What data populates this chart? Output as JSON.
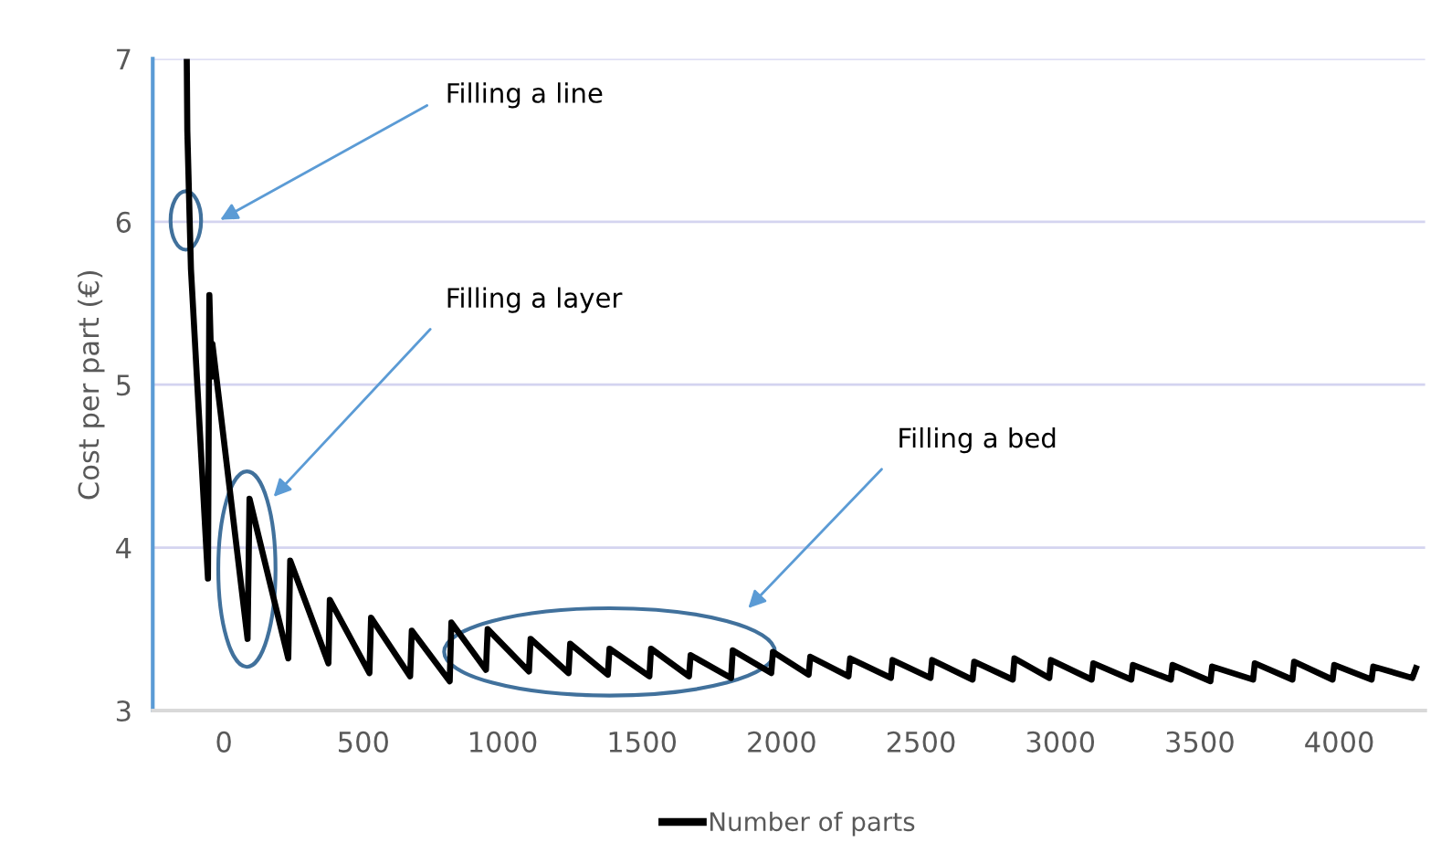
{
  "chart_data": {
    "type": "line",
    "ylabel": "Cost per part (€)",
    "xlim": [
      -255,
      4308
    ],
    "xticks": [
      0,
      500,
      1000,
      1500,
      2000,
      2500,
      3000,
      3500,
      4000
    ],
    "ylim": [
      3,
      7
    ],
    "yticks": [
      3,
      4,
      5,
      6,
      7
    ],
    "grid": "y",
    "legend": "bottom",
    "marker": "none",
    "line_style": "solid",
    "series": [
      {
        "name": "Number of parts",
        "color": "#000000",
        "x": [
          -133,
          -131,
          -118,
          -57,
          -52,
          -44,
          -41,
          85,
          92,
          231,
          238,
          375,
          380,
          522,
          528,
          668,
          674,
          810,
          816,
          940,
          946,
          1094,
          1100,
          1236,
          1242,
          1377,
          1383,
          1526,
          1532,
          1668,
          1674,
          1819,
          1825,
          1963,
          1969,
          2097,
          2103,
          2240,
          2246,
          2392,
          2398,
          2534,
          2540,
          2685,
          2691,
          2829,
          2835,
          2960,
          2966,
          3112,
          3118,
          3254,
          3260,
          3396,
          3402,
          3538,
          3544,
          3691,
          3697,
          3832,
          3838,
          3976,
          3982,
          4116,
          4122,
          4262,
          4275
        ],
        "values": [
          7.0,
          6.56,
          5.71,
          3.81,
          5.55,
          5.05,
          5.25,
          3.44,
          4.3,
          3.32,
          3.92,
          3.29,
          3.68,
          3.23,
          3.57,
          3.21,
          3.49,
          3.18,
          3.54,
          3.25,
          3.5,
          3.24,
          3.44,
          3.23,
          3.41,
          3.22,
          3.38,
          3.21,
          3.38,
          3.21,
          3.34,
          3.2,
          3.37,
          3.23,
          3.36,
          3.22,
          3.33,
          3.21,
          3.32,
          3.2,
          3.31,
          3.2,
          3.31,
          3.19,
          3.3,
          3.19,
          3.32,
          3.2,
          3.31,
          3.19,
          3.29,
          3.19,
          3.28,
          3.19,
          3.28,
          3.18,
          3.27,
          3.19,
          3.29,
          3.19,
          3.3,
          3.19,
          3.28,
          3.19,
          3.27,
          3.2,
          3.26
        ]
      }
    ],
    "annotations": [
      "Filling a line",
      "Filling a layer",
      "Filling a bed"
    ]
  }
}
